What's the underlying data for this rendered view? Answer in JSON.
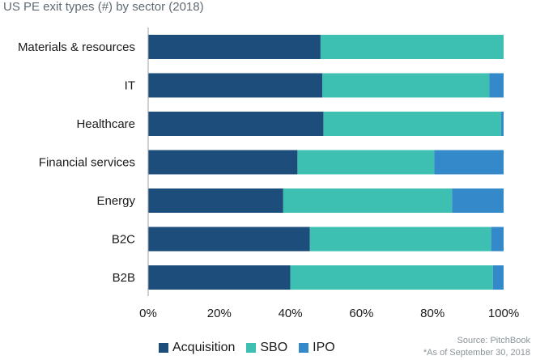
{
  "chart_data": {
    "type": "bar",
    "orientation": "horizontal",
    "stacked": "percent",
    "title": "US PE exit types (#) by sector (2018)",
    "categories": [
      "Materials & resources",
      "IT",
      "Healthcare",
      "Financial services",
      "Energy",
      "B2C",
      "B2B"
    ],
    "series": [
      {
        "name": "Acquisition",
        "color": "#1d4d7a",
        "values": [
          48.5,
          49,
          49.3,
          42,
          38,
          45.5,
          40
        ]
      },
      {
        "name": "SBO",
        "color": "#3dbfb1",
        "values": [
          51.5,
          47,
          50,
          38.5,
          47.5,
          51,
          57
        ]
      },
      {
        "name": "IPO",
        "color": "#3389c9",
        "values": [
          0,
          4,
          0.7,
          19.5,
          14.5,
          3.5,
          3
        ]
      }
    ],
    "xlim": [
      0,
      100
    ],
    "xticks": [
      "0%",
      "20%",
      "40%",
      "60%",
      "80%",
      "100%"
    ],
    "grid": false,
    "legend": "bottom",
    "source": "Source: PitchBook",
    "footnote": "*As of September 30, 2018"
  }
}
